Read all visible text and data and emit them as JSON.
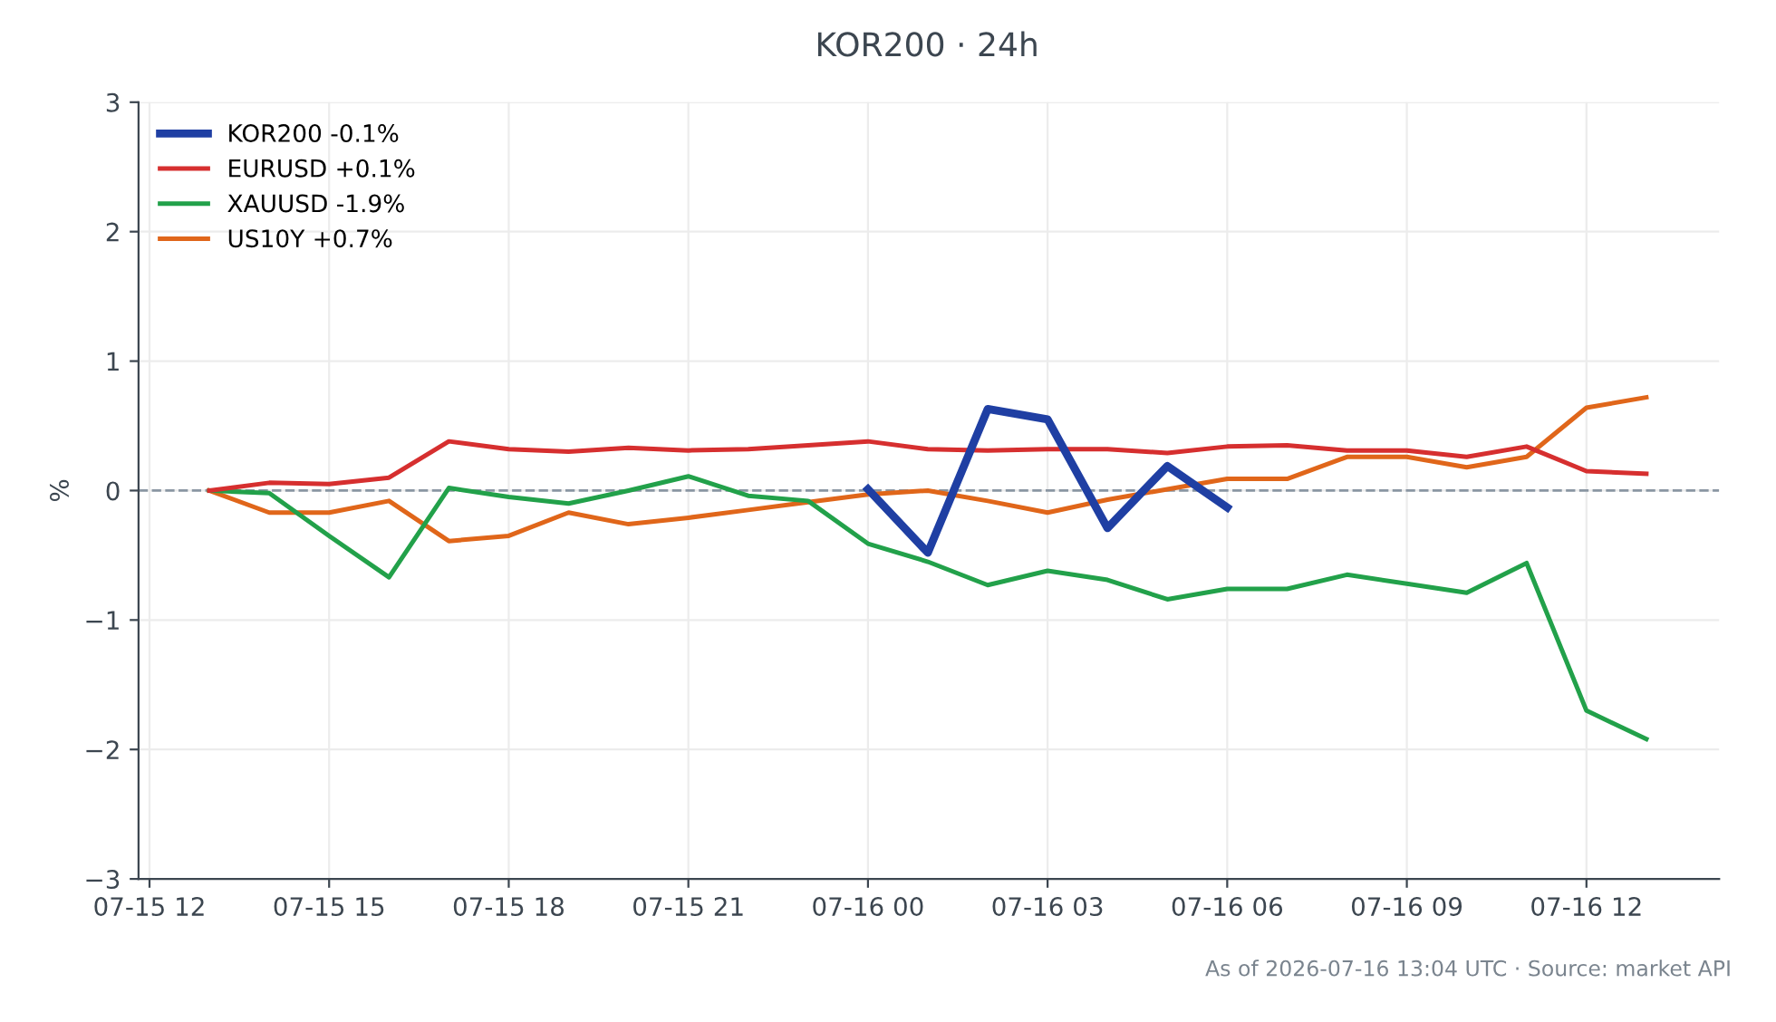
{
  "chart_data": {
    "type": "line",
    "title": "KOR200 · 24h",
    "ylabel": "%",
    "x": [
      "2026-07-15T13:00",
      "2026-07-15T14:00",
      "2026-07-15T15:00",
      "2026-07-15T16:00",
      "2026-07-15T17:00",
      "2026-07-15T18:00",
      "2026-07-15T19:00",
      "2026-07-15T20:00",
      "2026-07-15T21:00",
      "2026-07-15T22:00",
      "2026-07-15T23:00",
      "2026-07-16T00:00",
      "2026-07-16T01:00",
      "2026-07-16T02:00",
      "2026-07-16T03:00",
      "2026-07-16T04:00",
      "2026-07-16T05:00",
      "2026-07-16T06:00",
      "2026-07-16T07:00",
      "2026-07-16T08:00",
      "2026-07-16T09:00",
      "2026-07-16T10:00",
      "2026-07-16T11:00",
      "2026-07-16T12:00",
      "2026-07-16T13:00"
    ],
    "series": [
      {
        "name": "KOR200 -0.1%",
        "color": "#1f3fa3",
        "x": [
          "2026-07-16T00:00",
          "2026-07-16T01:00",
          "2026-07-16T02:00",
          "2026-07-16T03:00",
          "2026-07-16T04:00",
          "2026-07-16T05:00",
          "2026-07-16T06:00"
        ],
        "values": [
          0.01,
          -0.48,
          0.63,
          0.55,
          -0.29,
          0.19,
          -0.13
        ]
      },
      {
        "name": "EURUSD +0.1%",
        "color": "#d62f2f",
        "values": [
          0,
          0.06,
          0.05,
          0.1,
          0.38,
          0.32,
          0.3,
          0.33,
          0.31,
          0.32,
          0.35,
          0.38,
          0.32,
          0.31,
          0.32,
          0.32,
          0.29,
          0.34,
          0.35,
          0.31,
          0.31,
          0.26,
          0.34,
          0.15,
          0.13
        ]
      },
      {
        "name": "XAUUSD -1.9%",
        "color": "#22a14a",
        "values": [
          0,
          -0.02,
          -0.35,
          -0.67,
          0.02,
          -0.05,
          -0.1,
          0.0,
          0.11,
          -0.04,
          -0.08,
          -0.41,
          -0.55,
          -0.73,
          -0.62,
          -0.69,
          -0.84,
          -0.76,
          -0.76,
          -0.65,
          -0.72,
          -0.79,
          -0.56,
          -1.7,
          -1.92
        ]
      },
      {
        "name": "US10Y +0.7%",
        "color": "#e0661a",
        "values": [
          0,
          -0.17,
          -0.17,
          -0.08,
          -0.39,
          -0.35,
          -0.17,
          -0.26,
          -0.21,
          -0.15,
          -0.09,
          -0.03,
          0.0,
          -0.08,
          -0.17,
          -0.07,
          0.01,
          0.09,
          0.09,
          0.26,
          0.26,
          0.18,
          0.26,
          0.64,
          0.72
        ]
      }
    ],
    "xlim": [
      "2026-07-15T11:49",
      "2026-07-16T14:13"
    ],
    "xticks": [
      {
        "value": "2026-07-15T12:00",
        "label": "07-15 12"
      },
      {
        "value": "2026-07-15T15:00",
        "label": "07-15 15"
      },
      {
        "value": "2026-07-15T18:00",
        "label": "07-15 18"
      },
      {
        "value": "2026-07-15T21:00",
        "label": "07-15 21"
      },
      {
        "value": "2026-07-16T00:00",
        "label": "07-16 00"
      },
      {
        "value": "2026-07-16T03:00",
        "label": "07-16 03"
      },
      {
        "value": "2026-07-16T06:00",
        "label": "07-16 06"
      },
      {
        "value": "2026-07-16T09:00",
        "label": "07-16 09"
      },
      {
        "value": "2026-07-16T12:00",
        "label": "07-16 12"
      }
    ],
    "ylim": [
      -3,
      3
    ],
    "yticks": [
      {
        "value": -3,
        "label": "−3"
      },
      {
        "value": -2,
        "label": "−2"
      },
      {
        "value": -1,
        "label": "−1"
      },
      0,
      1,
      2,
      3
    ],
    "ref_lines": [
      {
        "axis": "y",
        "value": 0,
        "label": null,
        "color": "#8a96a3",
        "line_style": "dashed"
      }
    ],
    "grid": true,
    "legend": "top left",
    "marker": "none",
    "line_style": "solid",
    "annotations": [
      "As of 2026-07-16 13:04 UTC · Source: market API"
    ]
  }
}
